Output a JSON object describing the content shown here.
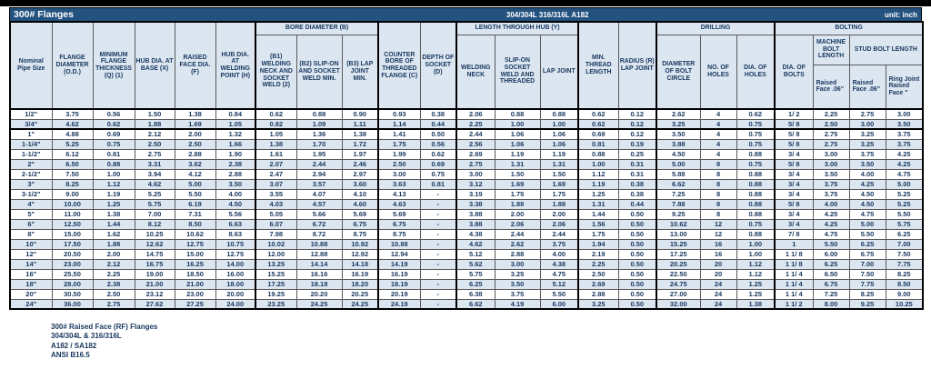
{
  "colors": {
    "title_bar_bg": "#24527F",
    "header_fill": "#DCE6F1",
    "row_stripe": "#DCE6F1",
    "text_navy": "#17375E",
    "top_strip": "#000000"
  },
  "title_bar": {
    "title": "300# Flanges",
    "material_grades": "304/304L 316/316L A182",
    "unit_label": "unit: inch"
  },
  "table": {
    "headers": {
      "nominal_pipe_size": "Nominal Pipe Size",
      "flange_diameter": "FLANGE DIAMETER (O.D.)",
      "min_flange_thickness": "MINIMUM FLANGE THICKNESS (Q) (1)",
      "hub_dia_at_base": "HUB DIA. AT BASE (X)",
      "raised_face_dia": "RAISED FACE DIA. (F)",
      "hub_dia_at_welding_point": "HUB DIA. AT WELDING POINT (H)",
      "bore_diameter_group": "BORE DIAMETER (B)",
      "b1_welding_neck_socket_weld": "(B1) WELDING NECK AND SOCKET WELD (2)",
      "b2_slip_on_socket_weld": "(B2) SLIP-ON AND SOCKET WELD MIN.",
      "b3_lap_joint": "(B3) LAP JOINT MIN.",
      "counter_bore_threaded_flange": "COUNTER BORE OF THREADED FLANGE (C)",
      "depth_of_socket": "DEPTH OF SOCKET (D)",
      "length_through_hub_group": "LENGTH THROUGH HUB (Y)",
      "welding_neck": "WELDING NECK",
      "slip_on_socket_weld_threaded": "SLIP-ON SOCKET WELD AND THREADED",
      "lap_joint": "LAP JOINT",
      "min_thread_length": "MIN. THREAD LENGTH",
      "radius_lap_joint": "RADIUS (R) LAP JOINT",
      "drilling_group": "DRILLING",
      "diameter_of_bolt_circle": "DIAMETER OF BOLT CIRCLE",
      "no_of_holes": "NO. OF HOLES",
      "dia_of_holes": "DIA. OF HOLES",
      "bolting_group": "BOLTING",
      "dia_of_bolts": "DIA. OF BOLTS",
      "machine_bolt_length": "MACHINE BOLT LENGTH",
      "stud_bolt_length": "STUD BOLT LENGTH",
      "machine_raised_face": "Raised Face .06\"",
      "stud_raised_face": "Raised Face .06\"",
      "stud_ring_joint_raised_face": "Ring Joint Raised Face \""
    },
    "rows": [
      [
        "1/2\"",
        "3.75",
        "0.56",
        "1.50",
        "1.38",
        "0.84",
        "0.62",
        "0.88",
        "0.90",
        "0.93",
        "0.38",
        "2.06",
        "0.88",
        "0.88",
        "0.62",
        "0.12",
        "2.62",
        "4",
        "0.62",
        "1/ 2",
        "2.25",
        "2.75",
        "3.00"
      ],
      [
        "3/4\"",
        "4.62",
        "0.62",
        "1.88",
        "1.69",
        "1.05",
        "0.82",
        "1.09",
        "1.11",
        "1.14",
        "0.44",
        "2.25",
        "1.00",
        "1.00",
        "0.62",
        "0.12",
        "3.25",
        "4",
        "0.75",
        "5/ 8",
        "2.50",
        "3.00",
        "3.50"
      ],
      [
        "1\"",
        "4.88",
        "0.69",
        "2.12",
        "2.00",
        "1.32",
        "1.05",
        "1.36",
        "1.38",
        "1.41",
        "0.50",
        "2.44",
        "1.06",
        "1.06",
        "0.69",
        "0.12",
        "3.50",
        "4",
        "0.75",
        "5/ 8",
        "2.75",
        "3.25",
        "3.75"
      ],
      [
        "1-1/4\"",
        "5.25",
        "0.75",
        "2.50",
        "2.50",
        "1.66",
        "1.38",
        "1.70",
        "1.72",
        "1.75",
        "0.56",
        "2.56",
        "1.06",
        "1.06",
        "0.81",
        "0.19",
        "3.88",
        "4",
        "0.75",
        "5/ 8",
        "2.75",
        "3.25",
        "3.75"
      ],
      [
        "1-1/2\"",
        "6.12",
        "0.81",
        "2.75",
        "2.88",
        "1.90",
        "1.61",
        "1.95",
        "1.97",
        "1.99",
        "0.62",
        "2.69",
        "1.19",
        "1.19",
        "0.88",
        "0.25",
        "4.50",
        "4",
        "0.88",
        "3/ 4",
        "3.00",
        "3.75",
        "4.25"
      ],
      [
        "2\"",
        "6.50",
        "0.88",
        "3.31",
        "3.62",
        "2.38",
        "2.07",
        "2.44",
        "2.46",
        "2.50",
        "0.69",
        "2.75",
        "1.31",
        "1.31",
        "1.00",
        "0.31",
        "5.00",
        "8",
        "0.75",
        "5/ 8",
        "3.00",
        "3.50",
        "4.25"
      ],
      [
        "2-1/2\"",
        "7.50",
        "1.00",
        "3.94",
        "4.12",
        "2.88",
        "2.47",
        "2.94",
        "2.97",
        "3.00",
        "0.75",
        "3.00",
        "1.50",
        "1.50",
        "1.12",
        "0.31",
        "5.88",
        "8",
        "0.88",
        "3/ 4",
        "3.50",
        "4.00",
        "4.75"
      ],
      [
        "3\"",
        "8.25",
        "1.12",
        "4.62",
        "5.00",
        "3.50",
        "3.07",
        "3.57",
        "3.60",
        "3.63",
        "0.81",
        "3.12",
        "1.69",
        "1.69",
        "1.19",
        "0.38",
        "6.62",
        "8",
        "0.88",
        "3/ 4",
        "3.75",
        "4.25",
        "5.00"
      ],
      [
        "3-1/2\"",
        "9.00",
        "1.19",
        "5.25",
        "5.50",
        "4.00",
        "3.55",
        "4.07",
        "4.10",
        "4.13",
        "-",
        "3.19",
        "1.75",
        "1.75",
        "1.25",
        "0.38",
        "7.25",
        "8",
        "0.88",
        "3/ 4",
        "3.75",
        "4.50",
        "5.25"
      ],
      [
        "4\"",
        "10.00",
        "1.25",
        "5.75",
        "6.19",
        "4.50",
        "4.03",
        "4.57",
        "4.60",
        "4.63",
        "-",
        "3.38",
        "1.88",
        "1.88",
        "1.31",
        "0.44",
        "7.88",
        "8",
        "0.88",
        "5/ 8",
        "4.00",
        "4.50",
        "5.25"
      ],
      [
        "5\"",
        "11.00",
        "1.38",
        "7.00",
        "7.31",
        "5.56",
        "5.05",
        "5.66",
        "5.69",
        "5.69",
        "-",
        "3.88",
        "2.00",
        "2.00",
        "1.44",
        "0.50",
        "9.25",
        "8",
        "0.88",
        "3/ 4",
        "4.25",
        "4.75",
        "5.50"
      ],
      [
        "6\"",
        "12.50",
        "1.44",
        "8.12",
        "8.50",
        "6.63",
        "6.07",
        "6.72",
        "6.75",
        "6.75",
        "-",
        "3.88",
        "2.06",
        "2.06",
        "1.56",
        "0.50",
        "10.62",
        "12",
        "0.75",
        "3/ 4",
        "4.25",
        "5.00",
        "5.75"
      ],
      [
        "8\"",
        "15.00",
        "1.62",
        "10.25",
        "10.62",
        "8.63",
        "7.98",
        "8.72",
        "8.75",
        "8.75",
        "-",
        "4.38",
        "2.44",
        "2.44",
        "1.75",
        "0.50",
        "13.00",
        "12",
        "0.88",
        "7/ 8",
        "4.75",
        "5.50",
        "6.25"
      ],
      [
        "10\"",
        "17.50",
        "1.88",
        "12.62",
        "12.75",
        "10.75",
        "10.02",
        "10.88",
        "10.92",
        "10.88",
        "-",
        "4.62",
        "2.62",
        "3.75",
        "1.94",
        "0.50",
        "15.25",
        "16",
        "1.00",
        "1",
        "5.50",
        "6.25",
        "7.00"
      ],
      [
        "12\"",
        "20.50",
        "2.00",
        "14.75",
        "15.00",
        "12.75",
        "12.00",
        "12.88",
        "12.92",
        "12.94",
        "-",
        "5.12",
        "2.88",
        "4.00",
        "2.19",
        "0.50",
        "17.25",
        "16",
        "1.00",
        "1 1/ 8",
        "6.00",
        "6.75",
        "7.50"
      ],
      [
        "14\"",
        "23.00",
        "2.12",
        "16.75",
        "16.25",
        "14.00",
        "13.25",
        "14.14",
        "14.18",
        "14.19",
        "-",
        "5.62",
        "3.00",
        "4.38",
        "2.25",
        "0.50",
        "20.25",
        "20",
        "1.12",
        "1 1/ 8",
        "6.25",
        "7.00",
        "7.75"
      ],
      [
        "16\"",
        "25.50",
        "2.25",
        "19.00",
        "18.50",
        "16.00",
        "15.25",
        "16.16",
        "16.19",
        "16.19",
        "-",
        "5.75",
        "3.25",
        "4.75",
        "2.50",
        "0.50",
        "22.50",
        "20",
        "1.12",
        "1 1/ 4",
        "6.50",
        "7.50",
        "8.25"
      ],
      [
        "18\"",
        "28.00",
        "2.38",
        "21.00",
        "21.00",
        "18.00",
        "17.25",
        "18.18",
        "18.20",
        "18.19",
        "-",
        "6.25",
        "3.50",
        "5.12",
        "2.69",
        "0.50",
        "24.75",
        "24",
        "1.25",
        "1 1/ 4",
        "6.75",
        "7.75",
        "8.50"
      ],
      [
        "20\"",
        "30.50",
        "2.50",
        "23.12",
        "23.00",
        "20.00",
        "19.25",
        "20.20",
        "20.25",
        "20.19",
        "-",
        "6.38",
        "3.75",
        "5.50",
        "2.88",
        "0.50",
        "27.00",
        "24",
        "1.25",
        "1 1/ 4",
        "7.25",
        "8.25",
        "9.00"
      ],
      [
        "24\"",
        "36.00",
        "2.75",
        "27.62",
        "27.25",
        "24.00",
        "23.25",
        "24.25",
        "24.25",
        "24.19",
        "-",
        "6.62",
        "4.19",
        "6.00",
        "3.25",
        "0.50",
        "32.00",
        "24",
        "1.38",
        "1 1/ 2",
        "8.00",
        "9.25",
        "10.25"
      ]
    ]
  },
  "notes": [
    "300# Raised Face (RF) Flanges",
    "304/304L & 316/316L",
    "A182 / SA182",
    "ANSI B16.5"
  ]
}
